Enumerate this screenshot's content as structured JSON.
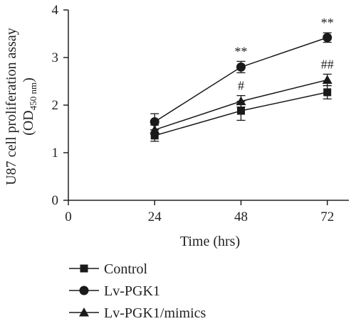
{
  "chart_data": {
    "type": "line",
    "xlabel": "Time (hrs)",
    "ylabel_line1": "U87 cell proliferation assay",
    "ylabel_line2_prefix": "(OD",
    "ylabel_line2_sub": "450 nm",
    "ylabel_line2_suffix": ")",
    "x_ticks": [
      0,
      24,
      48,
      72
    ],
    "y_ticks": [
      0,
      1,
      2,
      3,
      4
    ],
    "xlim": [
      0,
      78
    ],
    "ylim": [
      0,
      4
    ],
    "grid": false,
    "legend_position": "bottom",
    "x": [
      24,
      48,
      72
    ],
    "series": [
      {
        "name": "Control",
        "marker": "square",
        "values": [
          1.36,
          1.88,
          2.27
        ],
        "errors": [
          0.12,
          0.2,
          0.14
        ],
        "sig": [
          "",
          "",
          ""
        ]
      },
      {
        "name": "Lv-PGK1",
        "marker": "circle",
        "values": [
          1.65,
          2.8,
          3.42
        ],
        "errors": [
          0.17,
          0.12,
          0.1
        ],
        "sig": [
          "",
          "**",
          "**"
        ]
      },
      {
        "name": "Lv-PGK1/mimics",
        "marker": "triangle",
        "values": [
          1.48,
          2.08,
          2.53
        ],
        "errors": [
          0.1,
          0.12,
          0.12
        ],
        "sig": [
          "",
          "#",
          "##"
        ]
      }
    ],
    "colors": {
      "line": "#1a1a1a",
      "axis": "#222222"
    }
  }
}
